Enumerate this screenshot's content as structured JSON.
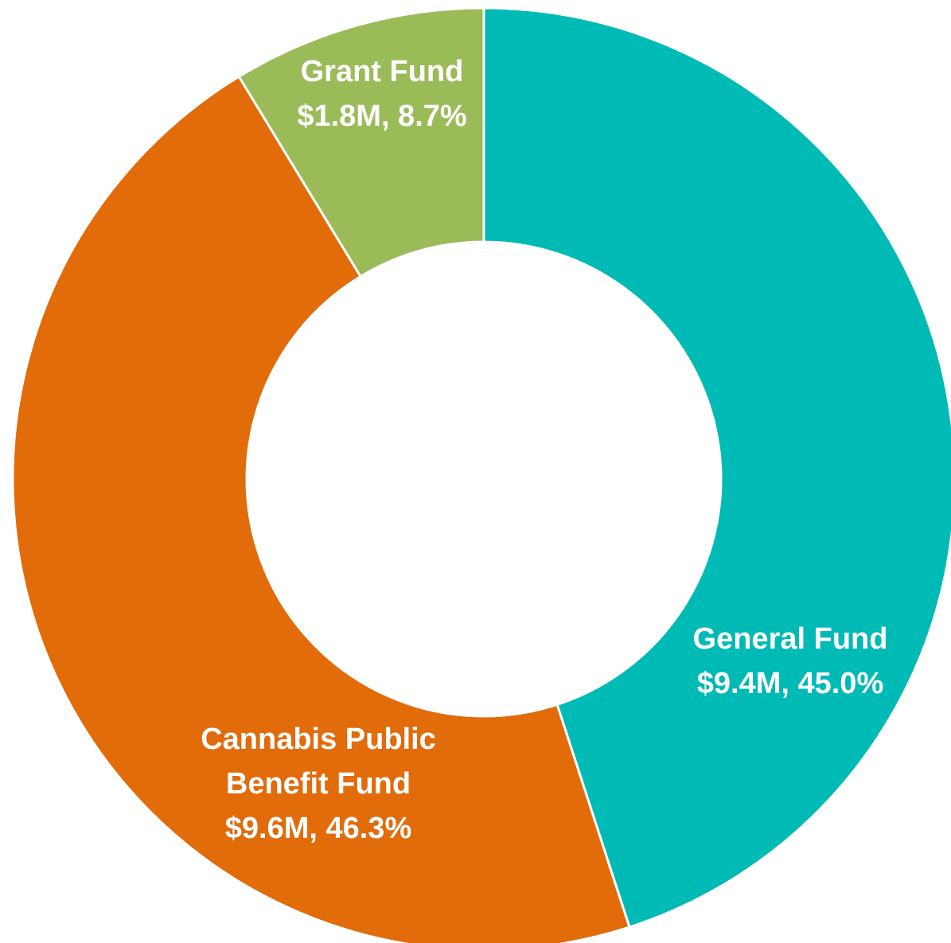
{
  "chart_data": {
    "type": "pie",
    "variant": "donut",
    "start": "12 o'clock",
    "direction": "clockwise",
    "slices": [
      {
        "name": "General Fund",
        "value": 9.4,
        "percent": 45.0,
        "color": "#00BAB5",
        "label_lines": [
          "General Fund",
          "$9.4M, 45.0%"
        ]
      },
      {
        "name": "Cannabis Public Benefit Fund",
        "value": 9.6,
        "percent": 46.3,
        "color": "#E26B0A",
        "label_lines": [
          "Cannabis Public",
          "Benefit Fund",
          "$9.6M, 46.3%"
        ]
      },
      {
        "name": "Grant Fund",
        "value": 1.8,
        "percent": 8.7,
        "color": "#9BBB59",
        "label_lines": [
          "Grant Fund",
          "$1.8M, 8.7%"
        ]
      }
    ]
  }
}
